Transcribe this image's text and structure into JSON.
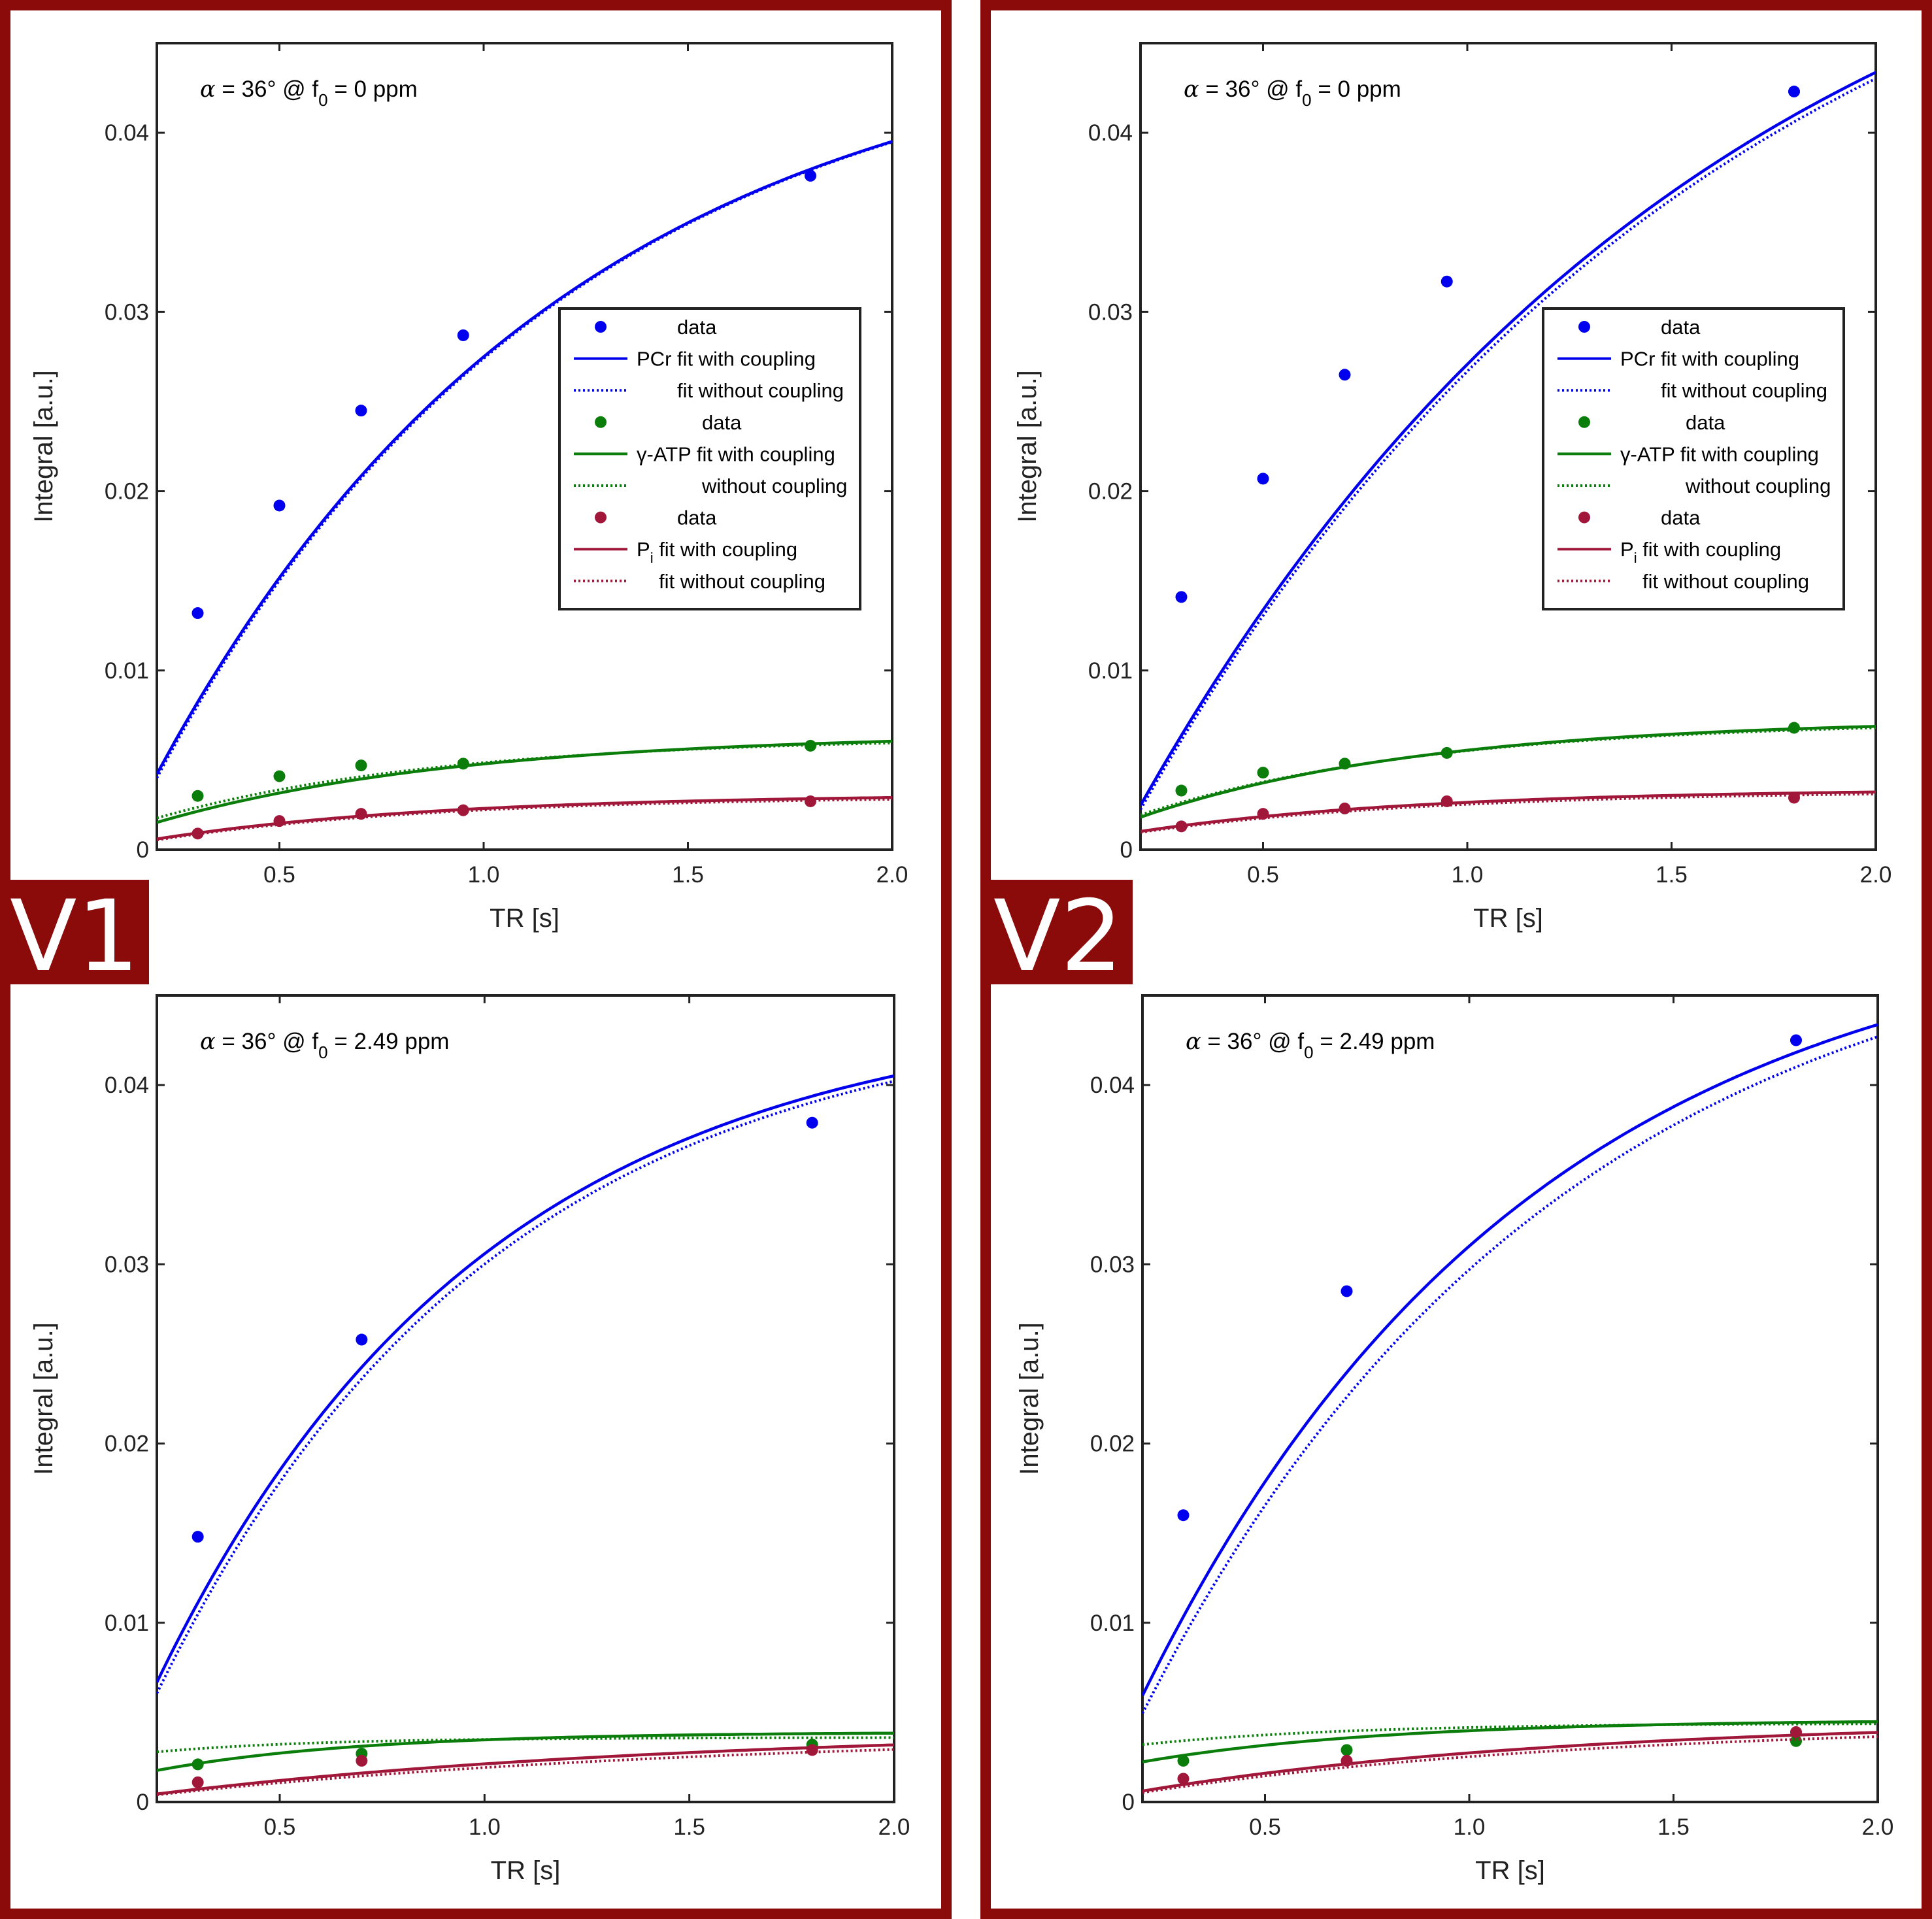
{
  "badges": {
    "v1": "V1",
    "v2": "V2"
  },
  "colors": {
    "frame": "#8b0a0a",
    "pcr": "#0000ee",
    "atp": "#0a7d0a",
    "pi": "#a0173a"
  },
  "legend": {
    "pcr_data": "data",
    "pcr_fit": "PCr fit with coupling",
    "pcr_nofit": "fit without coupling",
    "atp_data": "data",
    "atp_fit": "γ-ATP fit with coupling",
    "atp_nofit": "without coupling",
    "pi_data": "data",
    "pi_fit_prefix": "P",
    "pi_fit_sub": "i",
    "pi_fit": " fit with coupling",
    "pi_nofit": "fit without coupling"
  },
  "chart_data": [
    {
      "type": "line",
      "panel": "V1",
      "position": "top",
      "annotation": {
        "alpha": "α",
        "text1": " = 36° @ f",
        "sub": "0",
        "text2": " = 0 ppm"
      },
      "xlabel": "TR [s]",
      "ylabel": "Integral [a.u.]",
      "xlim": [
        0.2,
        2.0
      ],
      "ylim": [
        0,
        0.045
      ],
      "xticks": [
        0.5,
        1.0,
        1.5,
        2.0
      ],
      "xtick_labels": [
        "0.5",
        "1.0",
        "1.5",
        "2.0"
      ],
      "yticks": [
        0,
        0.01,
        0.02,
        0.03,
        0.04
      ],
      "ytick_labels": [
        "0",
        "0.01",
        "0.02",
        "0.03",
        "0.04"
      ],
      "legend_visible": true,
      "legend_position": "center-right",
      "series": [
        {
          "name": "PCr",
          "color": "#0000ee",
          "points_x": [
            0.3,
            0.5,
            0.7,
            0.95,
            1.8
          ],
          "points_y": [
            0.0132,
            0.0192,
            0.0245,
            0.0287,
            0.0376
          ],
          "fit_with": {
            "amp": 0.0465,
            "x0": 0.105,
            "tau": 1.0
          },
          "fit_without": {
            "amp": 0.0465,
            "x0": 0.11,
            "tau": 1.0
          }
        },
        {
          "name": "γ-ATP",
          "color": "#0a7d0a",
          "points_x": [
            0.3,
            0.5,
            0.7,
            0.95,
            1.8
          ],
          "points_y": [
            0.003,
            0.0041,
            0.0047,
            0.0048,
            0.0058
          ],
          "fit_with": {
            "amp": 0.0065,
            "x0": 0.0,
            "tau": 0.75
          },
          "fit_without": {
            "amp": 0.0063,
            "x0": -0.03,
            "tau": 0.7
          }
        },
        {
          "name": "Pi",
          "color": "#a0173a",
          "points_x": [
            0.3,
            0.5,
            0.7,
            0.95,
            1.8
          ],
          "points_y": [
            0.0009,
            0.0016,
            0.002,
            0.0022,
            0.0027
          ],
          "fit_with": {
            "amp": 0.0031,
            "x0": 0.05,
            "tau": 0.7
          },
          "fit_without": {
            "amp": 0.003,
            "x0": 0.06,
            "tau": 0.7
          }
        }
      ]
    },
    {
      "type": "line",
      "panel": "V1",
      "position": "bottom",
      "annotation": {
        "alpha": "α",
        "text1": " = 36° @ f",
        "sub": "0",
        "text2": " = 2.49 ppm"
      },
      "xlabel": "TR [s]",
      "ylabel": "Integral [a.u.]",
      "xlim": [
        0.2,
        2.0
      ],
      "ylim": [
        0,
        0.045
      ],
      "xticks": [
        0.5,
        1.0,
        1.5,
        2.0
      ],
      "xtick_labels": [
        "0.5",
        "1.0",
        "1.5",
        "2.0"
      ],
      "yticks": [
        0,
        0.01,
        0.02,
        0.03,
        0.04
      ],
      "ytick_labels": [
        "0",
        "0.01",
        "0.02",
        "0.03",
        "0.04"
      ],
      "legend_visible": false,
      "series": [
        {
          "name": "PCr",
          "color": "#0000ee",
          "points_x": [
            0.3,
            0.7,
            1.8
          ],
          "points_y": [
            0.0148,
            0.0258,
            0.0379
          ],
          "fit_with": {
            "amp": 0.0445,
            "x0": 0.07,
            "tau": 0.8
          },
          "fit_without": {
            "amp": 0.0445,
            "x0": 0.08,
            "tau": 0.82
          }
        },
        {
          "name": "γ-ATP",
          "color": "#0a7d0a",
          "points_x": [
            0.3,
            0.7,
            1.8
          ],
          "points_y": [
            0.0021,
            0.0027,
            0.0032
          ],
          "fit_with": {
            "amp": 0.0039,
            "x0": -0.1,
            "tau": 0.5
          },
          "fit_without": {
            "amp": 0.0036,
            "x0": -0.4,
            "tau": 0.4
          }
        },
        {
          "name": "Pi",
          "color": "#a0173a",
          "points_x": [
            0.3,
            0.7,
            1.8
          ],
          "points_y": [
            0.0011,
            0.0023,
            0.0029
          ],
          "fit_with": {
            "amp": 0.0041,
            "x0": 0.05,
            "tau": 1.3
          },
          "fit_without": {
            "amp": 0.0039,
            "x0": 0.05,
            "tau": 1.4
          }
        }
      ]
    },
    {
      "type": "line",
      "panel": "V2",
      "position": "top",
      "annotation": {
        "alpha": "α",
        "text1": " = 36° @ f",
        "sub": "0",
        "text2": " = 0 ppm"
      },
      "xlabel": "TR [s]",
      "ylabel": "Integral [a.u.]",
      "xlim": [
        0.2,
        2.0
      ],
      "ylim": [
        0,
        0.045
      ],
      "xticks": [
        0.5,
        1.0,
        1.5,
        2.0
      ],
      "xtick_labels": [
        "0.5",
        "1.0",
        "1.5",
        "2.0"
      ],
      "yticks": [
        0,
        0.01,
        0.02,
        0.03,
        0.04
      ],
      "ytick_labels": [
        "0",
        "0.01",
        "0.02",
        "0.03",
        "0.04"
      ],
      "legend_visible": true,
      "legend_position": "center-right",
      "series": [
        {
          "name": "PCr",
          "color": "#0000ee",
          "points_x": [
            0.3,
            0.5,
            0.7,
            0.95,
            1.8
          ],
          "points_y": [
            0.0141,
            0.0207,
            0.0265,
            0.0317,
            0.0423
          ],
          "fit_with": {
            "amp": 0.059,
            "x0": 0.14,
            "tau": 1.4
          },
          "fit_without": {
            "amp": 0.059,
            "x0": 0.145,
            "tau": 1.42
          }
        },
        {
          "name": "γ-ATP",
          "color": "#0a7d0a",
          "points_x": [
            0.3,
            0.5,
            0.7,
            0.95,
            1.8
          ],
          "points_y": [
            0.0033,
            0.0043,
            0.0048,
            0.0054,
            0.0068
          ],
          "fit_with": {
            "amp": 0.0073,
            "x0": 0.0,
            "tau": 0.7
          },
          "fit_without": {
            "amp": 0.0072,
            "x0": -0.02,
            "tau": 0.7
          }
        },
        {
          "name": "Pi",
          "color": "#a0173a",
          "points_x": [
            0.3,
            0.5,
            0.7,
            0.95,
            1.8
          ],
          "points_y": [
            0.0013,
            0.002,
            0.0023,
            0.0027,
            0.0029
          ],
          "fit_with": {
            "amp": 0.0034,
            "x0": -0.05,
            "tau": 0.7
          },
          "fit_without": {
            "amp": 0.0033,
            "x0": -0.05,
            "tau": 0.72
          }
        }
      ]
    },
    {
      "type": "line",
      "panel": "V2",
      "position": "bottom",
      "annotation": {
        "alpha": "α",
        "text1": " = 36° @ f",
        "sub": "0",
        "text2": " = 2.49 ppm"
      },
      "xlabel": "TR [s]",
      "ylabel": "Integral [a.u.]",
      "xlim": [
        0.2,
        2.0
      ],
      "ylim": [
        0,
        0.045
      ],
      "xticks": [
        0.5,
        1.0,
        1.5,
        2.0
      ],
      "xtick_labels": [
        "0.5",
        "1.0",
        "1.5",
        "2.0"
      ],
      "yticks": [
        0,
        0.01,
        0.02,
        0.03,
        0.04
      ],
      "ytick_labels": [
        "0",
        "0.01",
        "0.02",
        "0.03",
        "0.04"
      ],
      "legend_visible": false,
      "series": [
        {
          "name": "PCr",
          "color": "#0000ee",
          "points_x": [
            0.3,
            0.7,
            1.8
          ],
          "points_y": [
            0.016,
            0.0285,
            0.0425
          ],
          "fit_with": {
            "amp": 0.05,
            "x0": 0.08,
            "tau": 0.95
          },
          "fit_without": {
            "amp": 0.0505,
            "x0": 0.095,
            "tau": 1.02
          }
        },
        {
          "name": "γ-ATP",
          "color": "#0a7d0a",
          "points_x": [
            0.3,
            0.7,
            1.8
          ],
          "points_y": [
            0.0023,
            0.0029,
            0.0034
          ],
          "fit_with": {
            "amp": 0.0046,
            "x0": -0.2,
            "tau": 0.6
          },
          "fit_without": {
            "amp": 0.0044,
            "x0": -0.45,
            "tau": 0.5
          }
        },
        {
          "name": "Pi",
          "color": "#a0173a",
          "points_x": [
            0.3,
            0.7,
            1.8
          ],
          "points_y": [
            0.0013,
            0.0023,
            0.0039
          ],
          "fit_with": {
            "amp": 0.0046,
            "x0": 0.05,
            "tau": 1.05
          },
          "fit_without": {
            "amp": 0.0044,
            "x0": 0.06,
            "tau": 1.1
          }
        }
      ]
    }
  ]
}
